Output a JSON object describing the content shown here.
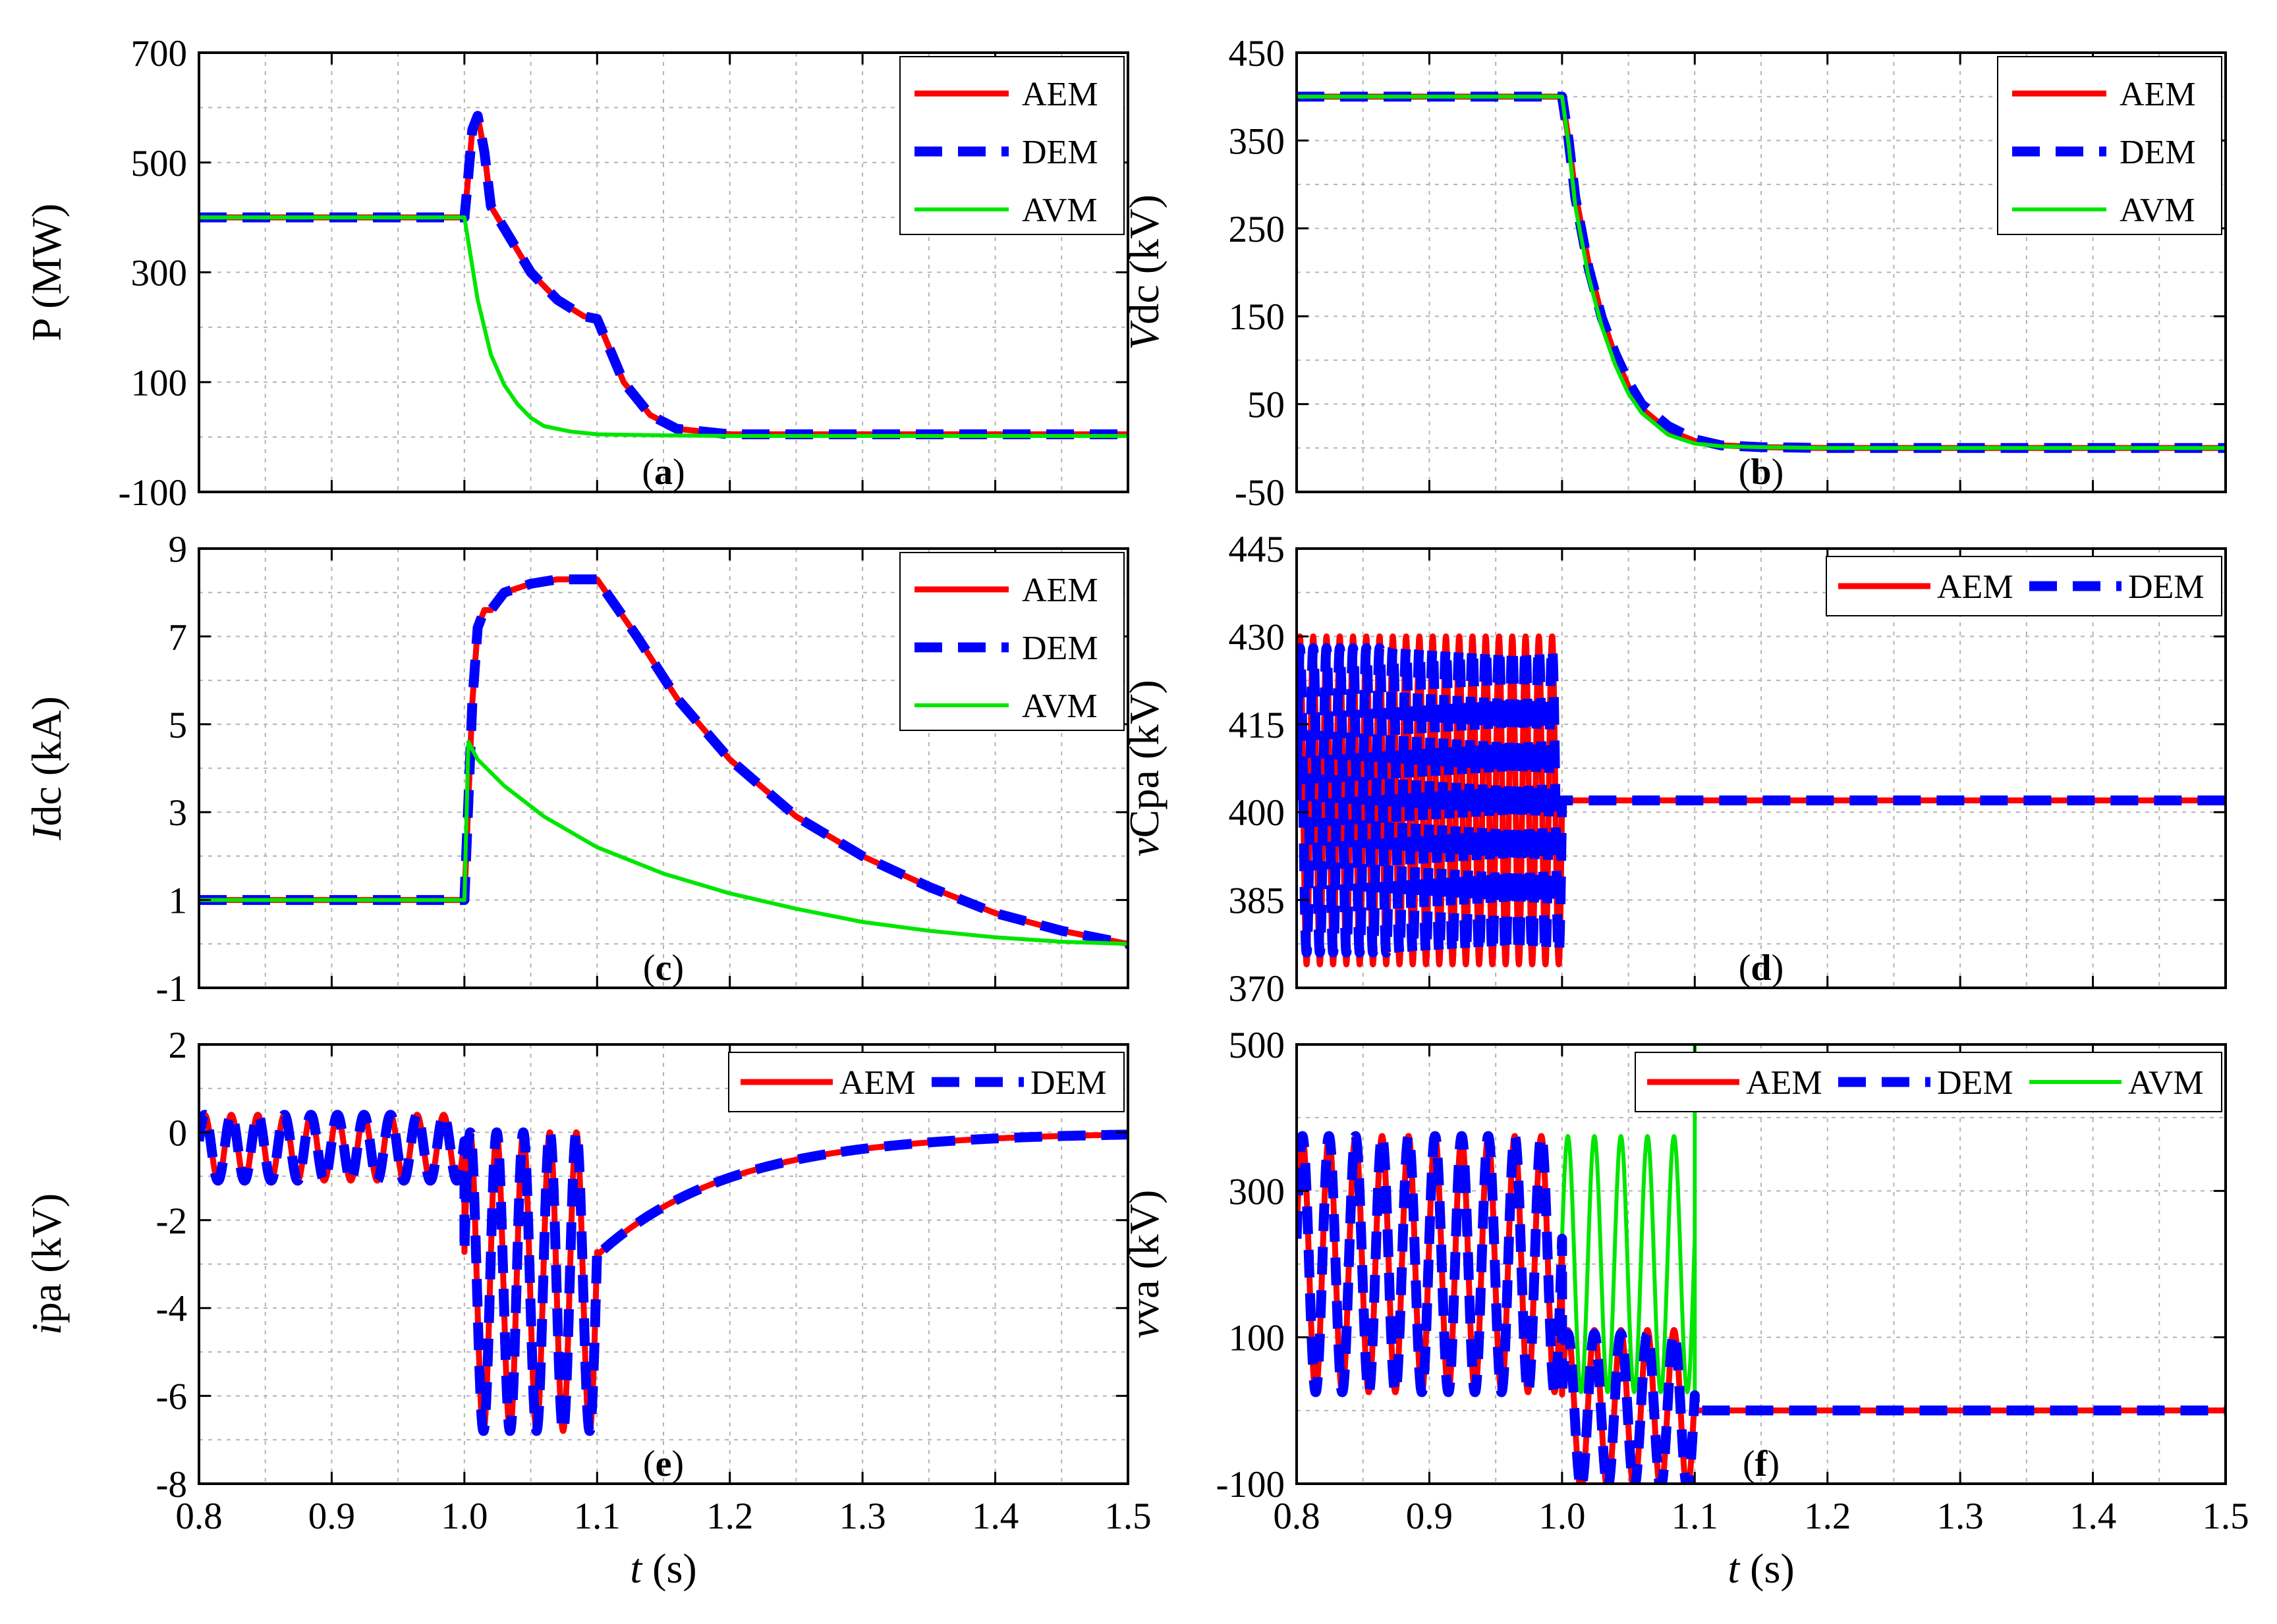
{
  "colors": {
    "AEM": "#ff0000",
    "DEM": "#0000ff",
    "AVM": "#00e600"
  },
  "chart_data": [
    {
      "id": "a",
      "panel_label": "a",
      "type": "line",
      "ylabel": {
        "main": "P",
        "rest": " (MW)",
        "italic_first": false
      },
      "xlim": [
        0.8,
        1.5
      ],
      "ylim": [
        -100,
        700
      ],
      "yticks": [
        -100,
        100,
        300,
        500,
        700
      ],
      "ytick_labels": [
        "-100",
        "100",
        "300",
        "500",
        "700"
      ],
      "xticks": [
        0.8,
        0.9,
        1.0,
        1.1,
        1.2,
        1.3,
        1.4,
        1.5
      ],
      "xtick_labels": [],
      "grid": true,
      "legend": {
        "position": "top-right",
        "layout": "vertical",
        "entries": [
          "AEM",
          "DEM",
          "AVM"
        ]
      },
      "series": [
        {
          "name": "AEM",
          "x": [
            0.8,
            1.0,
            1.002,
            1.006,
            1.01,
            1.015,
            1.02,
            1.03,
            1.05,
            1.07,
            1.09,
            1.1,
            1.12,
            1.14,
            1.16,
            1.2,
            1.3,
            1.5
          ],
          "y": [
            400,
            400,
            450,
            560,
            585,
            520,
            420,
            380,
            300,
            250,
            220,
            215,
            100,
            40,
            15,
            5,
            5,
            5
          ]
        },
        {
          "name": "DEM",
          "x": [
            0.8,
            1.0,
            1.002,
            1.006,
            1.01,
            1.015,
            1.02,
            1.03,
            1.05,
            1.07,
            1.09,
            1.1,
            1.12,
            1.14,
            1.16,
            1.2,
            1.3,
            1.5
          ],
          "y": [
            400,
            400,
            450,
            560,
            585,
            520,
            420,
            380,
            300,
            250,
            220,
            215,
            100,
            40,
            15,
            5,
            5,
            5
          ]
        },
        {
          "name": "AVM",
          "x": [
            0.8,
            1.0,
            1.01,
            1.02,
            1.03,
            1.04,
            1.05,
            1.06,
            1.08,
            1.1,
            1.15,
            1.2,
            1.5
          ],
          "y": [
            400,
            400,
            250,
            150,
            95,
            60,
            35,
            20,
            10,
            5,
            3,
            2,
            2
          ]
        }
      ]
    },
    {
      "id": "b",
      "panel_label": "b",
      "type": "line",
      "ylabel": {
        "main": "V",
        "rest": "dc (kV)",
        "italic_first": true
      },
      "xlim": [
        0.8,
        1.5
      ],
      "ylim": [
        -50,
        450
      ],
      "yticks": [
        -50,
        50,
        150,
        250,
        350,
        450
      ],
      "ytick_labels": [
        "-50",
        "50",
        "150",
        "250",
        "350",
        "450"
      ],
      "xticks": [
        0.8,
        0.9,
        1.0,
        1.1,
        1.2,
        1.3,
        1.4,
        1.5
      ],
      "xtick_labels": [],
      "grid": true,
      "legend": {
        "position": "top-right",
        "layout": "vertical",
        "entries": [
          "AEM",
          "DEM",
          "AVM"
        ]
      },
      "series": [
        {
          "name": "AEM",
          "x": [
            0.8,
            1.0,
            1.005,
            1.01,
            1.02,
            1.03,
            1.04,
            1.05,
            1.06,
            1.08,
            1.1,
            1.12,
            1.15,
            1.2,
            1.5
          ],
          "y": [
            400,
            400,
            350,
            290,
            210,
            150,
            105,
            70,
            45,
            20,
            8,
            3,
            1,
            0,
            0
          ]
        },
        {
          "name": "DEM",
          "x": [
            0.8,
            1.0,
            1.005,
            1.01,
            1.02,
            1.03,
            1.04,
            1.05,
            1.06,
            1.08,
            1.1,
            1.12,
            1.15,
            1.2,
            1.5
          ],
          "y": [
            400,
            400,
            350,
            285,
            205,
            148,
            108,
            75,
            50,
            25,
            10,
            3,
            1,
            0,
            0
          ]
        },
        {
          "name": "AVM",
          "x": [
            0.8,
            1.0,
            1.005,
            1.01,
            1.02,
            1.03,
            1.04,
            1.05,
            1.06,
            1.08,
            1.1,
            1.12,
            1.15,
            1.2,
            1.5
          ],
          "y": [
            400,
            400,
            345,
            275,
            195,
            138,
            95,
            62,
            40,
            15,
            5,
            2,
            1,
            0,
            0
          ]
        }
      ]
    },
    {
      "id": "c",
      "panel_label": "c",
      "type": "line",
      "ylabel": {
        "main": "I",
        "rest": "dc (kA)",
        "italic_first": true
      },
      "xlim": [
        0.8,
        1.5
      ],
      "ylim": [
        -1,
        9
      ],
      "yticks": [
        -1,
        1,
        3,
        5,
        7,
        9
      ],
      "ytick_labels": [
        "-1",
        "1",
        "3",
        "5",
        "7",
        "9"
      ],
      "xticks": [
        0.8,
        0.9,
        1.0,
        1.1,
        1.2,
        1.3,
        1.4,
        1.5
      ],
      "xtick_labels": [],
      "grid": true,
      "legend": {
        "position": "top-right",
        "layout": "vertical",
        "entries": [
          "AEM",
          "DEM",
          "AVM"
        ]
      },
      "series": [
        {
          "name": "AEM",
          "x": [
            0.8,
            1.0,
            1.002,
            1.006,
            1.01,
            1.015,
            1.02,
            1.03,
            1.05,
            1.07,
            1.09,
            1.1,
            1.13,
            1.16,
            1.2,
            1.25,
            1.3,
            1.35,
            1.4,
            1.45,
            1.5
          ],
          "y": [
            1,
            1,
            2.5,
            5.5,
            7.2,
            7.6,
            7.6,
            8.0,
            8.2,
            8.3,
            8.3,
            8.3,
            7.0,
            5.6,
            4.2,
            2.9,
            2.0,
            1.3,
            0.7,
            0.3,
            0
          ]
        },
        {
          "name": "DEM",
          "x": [
            0.8,
            1.0,
            1.002,
            1.006,
            1.01,
            1.015,
            1.02,
            1.03,
            1.05,
            1.07,
            1.09,
            1.1,
            1.13,
            1.16,
            1.2,
            1.25,
            1.3,
            1.35,
            1.4,
            1.45,
            1.5
          ],
          "y": [
            1,
            1,
            2.5,
            5.5,
            7.2,
            7.6,
            7.6,
            8.0,
            8.2,
            8.3,
            8.3,
            8.3,
            7.0,
            5.6,
            4.2,
            2.9,
            2.0,
            1.3,
            0.7,
            0.3,
            0
          ]
        },
        {
          "name": "AVM",
          "x": [
            0.8,
            1.0,
            1.003,
            1.01,
            1.03,
            1.06,
            1.1,
            1.15,
            1.2,
            1.25,
            1.3,
            1.35,
            1.4,
            1.45,
            1.5
          ],
          "y": [
            1,
            1,
            4.6,
            4.2,
            3.6,
            2.9,
            2.2,
            1.6,
            1.15,
            0.8,
            0.5,
            0.3,
            0.15,
            0.05,
            0
          ]
        }
      ]
    },
    {
      "id": "d",
      "panel_label": "d",
      "type": "line",
      "ylabel": {
        "main": "v",
        "rest": "Cpa (kV)",
        "italic_first": true
      },
      "xlim": [
        0.8,
        1.5
      ],
      "ylim": [
        370,
        445
      ],
      "yticks": [
        370,
        385,
        400,
        415,
        430,
        445
      ],
      "ytick_labels": [
        "370",
        "385",
        "400",
        "415",
        "430",
        "445"
      ],
      "xticks": [
        0.8,
        0.9,
        1.0,
        1.1,
        1.2,
        1.3,
        1.4,
        1.5
      ],
      "xtick_labels": [],
      "grid": true,
      "legend": {
        "position": "top-right",
        "layout": "horizontal",
        "entries": [
          "AEM",
          "DEM"
        ]
      },
      "series": [
        {
          "name": "AEM",
          "oscillation": {
            "t_start": 0.8,
            "t_end": 1.0,
            "frequency_hz": 100,
            "center": 402,
            "amplitude": 28
          },
          "after": {
            "t_start": 1.0,
            "t_end": 1.5,
            "value": 402
          }
        },
        {
          "name": "DEM",
          "oscillation": {
            "t_start": 0.8,
            "t_end": 1.0,
            "frequency_hz": 100,
            "center": 402,
            "amplitude": 26
          },
          "after": {
            "t_start": 1.0,
            "t_end": 1.5,
            "value": 402
          }
        }
      ]
    },
    {
      "id": "e",
      "panel_label": "e",
      "type": "line",
      "ylabel": {
        "main": "i",
        "rest": "pa (kV)",
        "italic_first": true
      },
      "xlabel": {
        "main": "t",
        "rest": " (s)"
      },
      "xlim": [
        0.8,
        1.5
      ],
      "ylim": [
        -8,
        2
      ],
      "yticks": [
        -8,
        -6,
        -4,
        -2,
        0,
        2
      ],
      "ytick_labels": [
        "-8",
        "-6",
        "-4",
        "-2",
        "0",
        "2"
      ],
      "xticks": [
        0.8,
        0.9,
        1.0,
        1.1,
        1.2,
        1.3,
        1.4,
        1.5
      ],
      "xtick_labels": [
        "0.8",
        "0.9",
        "1.0",
        "1.1",
        "1.2",
        "1.3",
        "1.4",
        "1.5"
      ],
      "grid": true,
      "legend": {
        "position": "top-right",
        "layout": "horizontal",
        "entries": [
          "AEM",
          "DEM"
        ]
      },
      "series": [
        {
          "name": "AEM",
          "segments": [
            {
              "kind": "sine",
              "t_start": 0.8,
              "t_end": 1.0,
              "frequency_hz": 50,
              "center": -0.35,
              "amplitude": 0.75
            },
            {
              "kind": "sine",
              "t_start": 1.0,
              "t_end": 1.1,
              "frequency_hz": 50,
              "center": -3.4,
              "amplitude": 3.4,
              "peak_low": -7.0
            },
            {
              "kind": "decay",
              "t_start": 1.1,
              "t_end": 1.5,
              "y_start": -2.8,
              "y_end": 0,
              "tau": 0.1
            }
          ]
        },
        {
          "name": "DEM",
          "segments": [
            {
              "kind": "sine",
              "t_start": 0.8,
              "t_end": 1.0,
              "frequency_hz": 50,
              "center": -0.35,
              "amplitude": 0.75
            },
            {
              "kind": "sine",
              "t_start": 1.0,
              "t_end": 1.1,
              "frequency_hz": 50,
              "center": -3.4,
              "amplitude": 3.4,
              "peak_low": -7.0
            },
            {
              "kind": "decay",
              "t_start": 1.1,
              "t_end": 1.5,
              "y_start": -2.8,
              "y_end": 0,
              "tau": 0.1
            }
          ]
        }
      ]
    },
    {
      "id": "f",
      "panel_label": "f",
      "type": "line",
      "ylabel": {
        "main": "v",
        "rest": "va (kV)",
        "italic_first": true
      },
      "xlabel": {
        "main": "t",
        "rest": " (s)"
      },
      "xlim": [
        0.8,
        1.5
      ],
      "ylim": [
        -100,
        500
      ],
      "yticks": [
        -100,
        100,
        300,
        500
      ],
      "ytick_labels": [
        "-100",
        "100",
        "300",
        "500"
      ],
      "xticks": [
        0.8,
        0.9,
        1.0,
        1.1,
        1.2,
        1.3,
        1.4,
        1.5
      ],
      "xtick_labels": [
        "0.8",
        "0.9",
        "1.0",
        "1.1",
        "1.2",
        "1.3",
        "1.4",
        "1.5"
      ],
      "grid": true,
      "legend": {
        "position": "top-right",
        "layout": "horizontal",
        "entries": [
          "AEM",
          "DEM",
          "AVM"
        ]
      },
      "series": [
        {
          "name": "AVM",
          "segments": [
            {
              "kind": "sine",
              "t_start": 0.8,
              "t_end": 1.1,
              "frequency_hz": 50,
              "center": 200,
              "amplitude": 175
            },
            {
              "kind": "spike",
              "t": 1.1,
              "y": 500
            },
            {
              "kind": "const",
              "t_start": 1.1,
              "t_end": 1.5,
              "value": 0
            }
          ]
        },
        {
          "name": "AEM",
          "segments": [
            {
              "kind": "sine",
              "t_start": 0.8,
              "t_end": 1.0,
              "frequency_hz": 50,
              "center": 200,
              "amplitude": 175
            },
            {
              "kind": "sine",
              "t_start": 1.0,
              "t_end": 1.1,
              "frequency_hz": 50,
              "center": 0,
              "amplitude": 110
            },
            {
              "kind": "const",
              "t_start": 1.1,
              "t_end": 1.5,
              "value": 0
            }
          ]
        },
        {
          "name": "DEM",
          "segments": [
            {
              "kind": "sine",
              "t_start": 0.8,
              "t_end": 1.0,
              "frequency_hz": 50,
              "center": 200,
              "amplitude": 175
            },
            {
              "kind": "sine",
              "t_start": 1.0,
              "t_end": 1.1,
              "frequency_hz": 50,
              "center": 0,
              "amplitude": 105
            },
            {
              "kind": "const",
              "t_start": 1.1,
              "t_end": 1.5,
              "value": 0
            }
          ]
        }
      ]
    }
  ]
}
